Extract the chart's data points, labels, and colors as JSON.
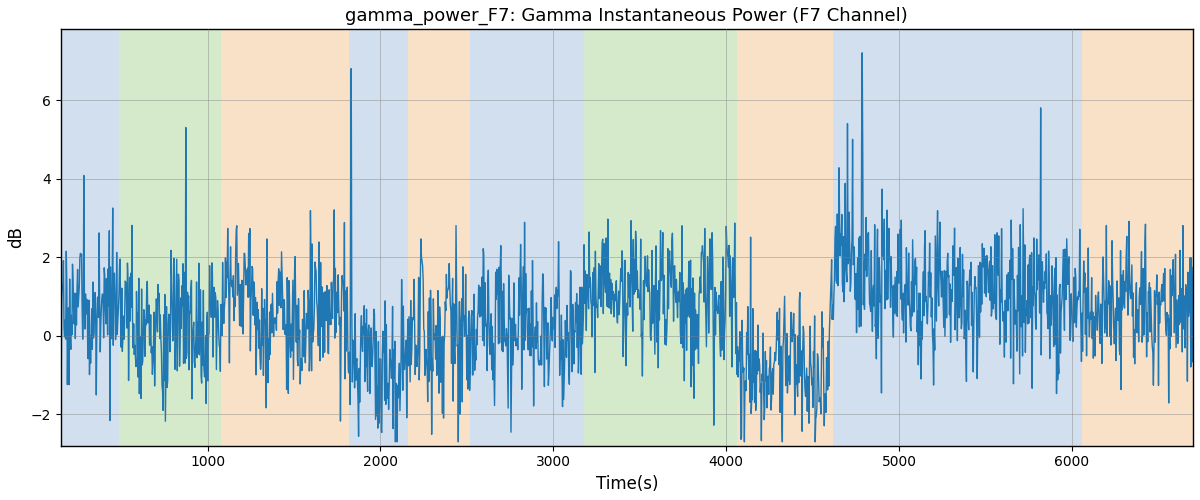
{
  "title": "gamma_power_F7: Gamma Instantaneous Power (F7 Channel)",
  "xlabel": "Time(s)",
  "ylabel": "dB",
  "xlim": [
    150,
    6700
  ],
  "ylim": [
    -2.8,
    7.8
  ],
  "yticks": [
    -2,
    0,
    2,
    4,
    6
  ],
  "xticks": [
    1000,
    2000,
    3000,
    4000,
    5000,
    6000
  ],
  "line_color": "#1f77b4",
  "line_width": 1.0,
  "bg_regions": [
    {
      "xmin": 150,
      "xmax": 490,
      "color": "#aec6e0",
      "alpha": 0.55
    },
    {
      "xmin": 490,
      "xmax": 1080,
      "color": "#b2d9a0",
      "alpha": 0.55
    },
    {
      "xmin": 1080,
      "xmax": 1820,
      "color": "#f5c99a",
      "alpha": 0.55
    },
    {
      "xmin": 1820,
      "xmax": 2160,
      "color": "#aec6e0",
      "alpha": 0.55
    },
    {
      "xmin": 2160,
      "xmax": 2520,
      "color": "#f5c99a",
      "alpha": 0.55
    },
    {
      "xmin": 2520,
      "xmax": 3180,
      "color": "#aec6e0",
      "alpha": 0.55
    },
    {
      "xmin": 3180,
      "xmax": 4060,
      "color": "#b2d9a0",
      "alpha": 0.55
    },
    {
      "xmin": 4060,
      "xmax": 4620,
      "color": "#f5c99a",
      "alpha": 0.55
    },
    {
      "xmin": 4620,
      "xmax": 6060,
      "color": "#aec6e0",
      "alpha": 0.55
    },
    {
      "xmin": 6060,
      "xmax": 6700,
      "color": "#f5c99a",
      "alpha": 0.55
    }
  ],
  "seed": 17,
  "figsize": [
    12,
    5
  ],
  "dpi": 100
}
